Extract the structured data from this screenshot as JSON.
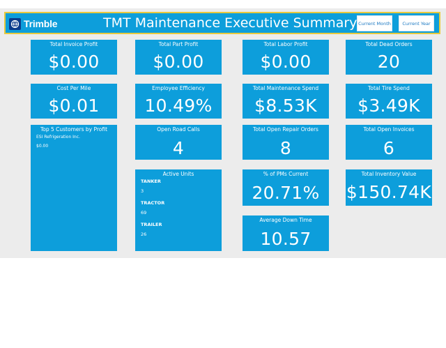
{
  "header": {
    "brand": "Trimble",
    "title": "TMT Maintenance Executive Summary",
    "buttons": {
      "current_month": "Current Month",
      "current_year": "Current Year"
    }
  },
  "kpis": {
    "total_invoice_profit": {
      "label": "Total Invoice Profit",
      "value": "$0.00"
    },
    "total_part_profit": {
      "label": "Total Part Profit",
      "value": "$0.00"
    },
    "total_labor_profit": {
      "label": "Total Labor Profit",
      "value": "$0.00"
    },
    "total_dead_orders": {
      "label": "Total Dead Orders",
      "value": "20"
    },
    "cost_per_mile": {
      "label": "Cost Per Mile",
      "value": "$0.01"
    },
    "employee_efficiency": {
      "label": "Employee Efficiency",
      "value": "10.49%"
    },
    "total_maintenance_spend": {
      "label": "Total Maintenance Spend",
      "value": "$8.53K"
    },
    "total_tire_spend": {
      "label": "Total Tire Spend",
      "value": "$3.49K"
    },
    "open_road_calls": {
      "label": "Open Road Calls",
      "value": "4"
    },
    "total_open_repair_orders": {
      "label": "Total Open Repair Orders",
      "value": "8"
    },
    "total_open_invoices": {
      "label": "Total Open Invoices",
      "value": "6"
    },
    "pms_current": {
      "label": "% of PMs Current",
      "value": "20.71%"
    },
    "total_inventory_value": {
      "label": "Total Inventory Value",
      "value": "$150.74K"
    },
    "average_down_time": {
      "label": "Average Down Time",
      "value": "10.57"
    }
  },
  "top_customers": {
    "label": "Top 5 Customers by Profit",
    "items": [
      {
        "name": "ESI Refrigeration Inc.",
        "value": "$0.00"
      }
    ]
  },
  "active_units": {
    "label": "Active Units",
    "items": [
      {
        "name": "TANKER",
        "count": "3"
      },
      {
        "name": "TRACTOR",
        "count": "69"
      },
      {
        "name": "TRAILER",
        "count": "26"
      }
    ]
  },
  "colors": {
    "tile": "#0d9edb",
    "header_border": "#e8c93c",
    "canvas": "#ececec",
    "brand_blue": "#0a3b8c"
  }
}
